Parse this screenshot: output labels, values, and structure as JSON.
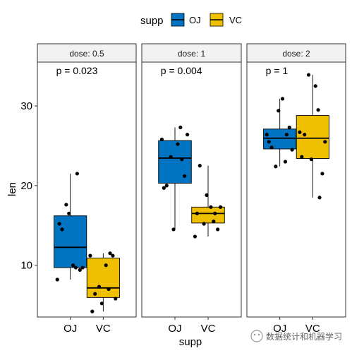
{
  "chart_data": {
    "type": "boxplot",
    "xlabel": "supp",
    "ylabel": "len",
    "ylim": [
      3.5,
      35.5
    ],
    "yticks": [
      10,
      20,
      30
    ],
    "categories": [
      "OJ",
      "VC"
    ],
    "legend": {
      "title": "supp",
      "position": "top",
      "entries": [
        {
          "label": "OJ",
          "color": "#0073C2"
        },
        {
          "label": "VC",
          "color": "#EFC000"
        }
      ]
    },
    "facets": [
      {
        "label": "dose: 0.5",
        "pvalue": "p = 0.023",
        "groups": [
          {
            "supp": "OJ",
            "box": {
              "min": 8.2,
              "q1": 9.7,
              "median": 12.25,
              "q3": 16.2,
              "max": 21.5
            },
            "points": [
              15.2,
              21.5,
              17.6,
              9.7,
              14.5,
              10.0,
              8.2,
              9.4,
              16.5,
              9.7
            ]
          },
          {
            "supp": "VC",
            "box": {
              "min": 4.2,
              "q1": 5.95,
              "median": 7.15,
              "q3": 10.9,
              "max": 11.5
            },
            "points": [
              4.2,
              11.5,
              7.3,
              5.8,
              6.4,
              10.0,
              11.2,
              11.2,
              5.2,
              7.0
            ]
          }
        ]
      },
      {
        "label": "dose: 1",
        "pvalue": "p = 0.004",
        "groups": [
          {
            "supp": "OJ",
            "box": {
              "min": 14.5,
              "q1": 20.3,
              "median": 23.45,
              "q3": 25.65,
              "max": 27.3
            },
            "points": [
              19.7,
              23.3,
              23.6,
              26.4,
              20.0,
              25.2,
              25.8,
              21.2,
              14.5,
              27.3
            ]
          },
          {
            "supp": "VC",
            "box": {
              "min": 13.6,
              "q1": 15.3,
              "median": 16.5,
              "q3": 17.3,
              "max": 22.5
            },
            "points": [
              16.5,
              16.5,
              15.2,
              17.3,
              22.5,
              17.3,
              13.6,
              14.5,
              18.8,
              15.5
            ]
          }
        ]
      },
      {
        "label": "dose: 2",
        "pvalue": "p = 1",
        "groups": [
          {
            "supp": "OJ",
            "box": {
              "min": 22.4,
              "q1": 24.6,
              "median": 25.95,
              "q3": 27.1,
              "max": 30.9
            },
            "points": [
              25.5,
              26.4,
              22.4,
              24.5,
              24.8,
              30.9,
              26.4,
              27.3,
              29.4,
              23.0
            ]
          },
          {
            "supp": "VC",
            "box": {
              "min": 18.5,
              "q1": 23.4,
              "median": 25.95,
              "q3": 28.8,
              "max": 33.9
            },
            "points": [
              23.6,
              18.5,
              33.9,
              25.5,
              26.4,
              32.5,
              26.7,
              21.5,
              23.3,
              29.5
            ]
          }
        ]
      }
    ]
  },
  "watermark": "数据统计和机器学习"
}
